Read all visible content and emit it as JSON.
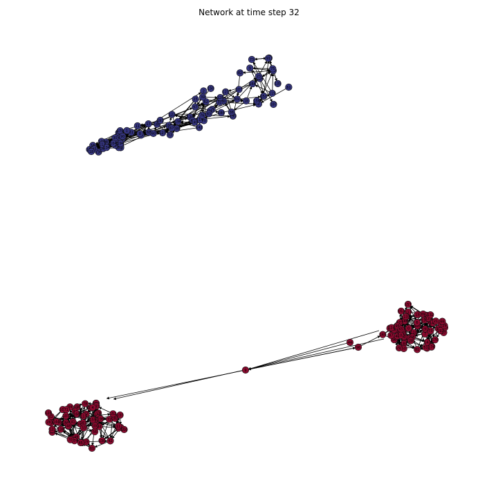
{
  "figure": {
    "title": "Network at time step 32"
  },
  "palette": {
    "cluster_blue": "#35357f",
    "cluster_red": "#8a0a2e",
    "edge": "#000000",
    "background": "#ffffff"
  },
  "graph": {
    "type": "directed-network",
    "clusters": [
      {
        "id": "blue",
        "color": "#35357f",
        "node_count": 90
      },
      {
        "id": "red_right",
        "color": "#8a0a2e",
        "node_count": 60
      },
      {
        "id": "red_left",
        "color": "#8a0a2e",
        "node_count": 60
      }
    ],
    "has_bridge_node": true
  }
}
